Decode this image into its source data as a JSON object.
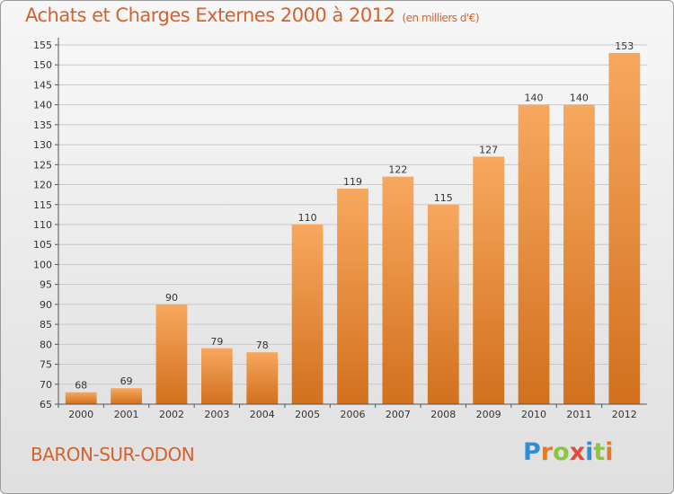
{
  "title": "Achats et Charges Externes 2000 à 2012",
  "subtitle": "(en milliers d'€)",
  "commune": "BARON-SUR-ODON",
  "logo": {
    "text": "Proxiti",
    "letters": [
      {
        "ch": "P",
        "color": "#2f8fd6"
      },
      {
        "ch": "r",
        "color": "#e07b2a"
      },
      {
        "ch": "o",
        "color": "#8cc63f"
      },
      {
        "ch": "x",
        "color": "#e64a3b"
      },
      {
        "ch": "i",
        "color": "#2f8fd6"
      },
      {
        "ch": "t",
        "color": "#8cc63f"
      },
      {
        "ch": "i",
        "color": "#e07b2a"
      }
    ]
  },
  "colors": {
    "accent": "#d3622f",
    "bar_light": "#f6a55a",
    "bar_dark": "#d7741f",
    "grid": "#c8c8c8"
  },
  "chart_data": {
    "type": "bar",
    "title": "Achats et Charges Externes 2000 à 2012",
    "subtitle": "(en milliers d'€)",
    "categories": [
      "2000",
      "2001",
      "2002",
      "2003",
      "2004",
      "2005",
      "2006",
      "2007",
      "2008",
      "2009",
      "2010",
      "2011",
      "2012"
    ],
    "values": [
      68,
      69,
      90,
      79,
      78,
      110,
      119,
      122,
      115,
      127,
      140,
      140,
      153
    ],
    "ylim": [
      65,
      155
    ],
    "yticks": [
      65,
      70,
      75,
      80,
      85,
      90,
      95,
      100,
      105,
      110,
      115,
      120,
      125,
      130,
      135,
      140,
      145,
      150,
      155
    ],
    "grid": true
  }
}
